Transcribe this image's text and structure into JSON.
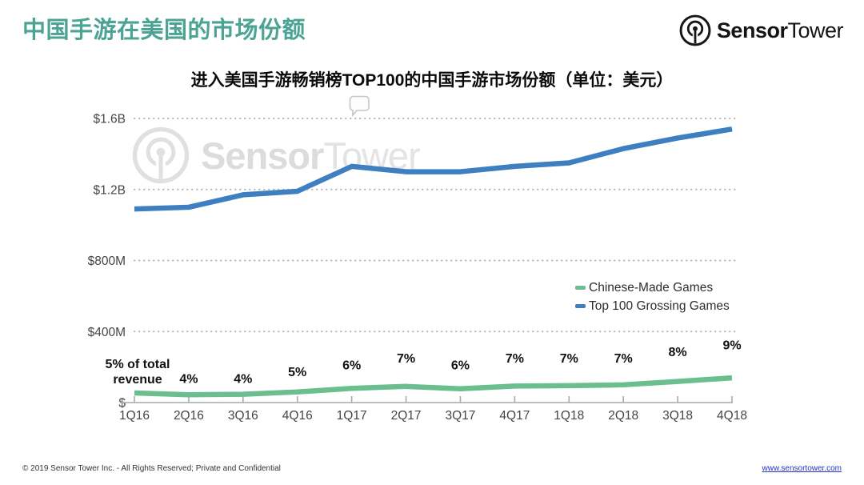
{
  "header": {
    "title": "中国手游在美国的市场份额",
    "logo_bold": "Sensor",
    "logo_light": "Tower"
  },
  "watermark": {
    "bold": "Sensor",
    "light": "Tower"
  },
  "chart_data": {
    "type": "line",
    "title": "进入美国手游畅销榜TOP100的中国手游市场份额（单位：美元）",
    "unit": "USD (billions)",
    "categories": [
      "1Q16",
      "2Q16",
      "3Q16",
      "4Q16",
      "1Q17",
      "2Q17",
      "3Q17",
      "4Q17",
      "1Q18",
      "2Q18",
      "3Q18",
      "4Q18"
    ],
    "series": [
      {
        "name": "Chinese-Made Games",
        "color": "#6bbe8e",
        "values_billion_usd": [
          0.054,
          0.044,
          0.047,
          0.06,
          0.08,
          0.091,
          0.078,
          0.093,
          0.095,
          0.1,
          0.119,
          0.139
        ]
      },
      {
        "name": "Top 100 Grossing Games",
        "color": "#3e7fc1",
        "values_billion_usd": [
          1.09,
          1.1,
          1.17,
          1.19,
          1.33,
          1.3,
          1.3,
          1.33,
          1.35,
          1.43,
          1.49,
          1.54
        ]
      }
    ],
    "percent_of_total": [
      5,
      4,
      4,
      5,
      6,
      7,
      6,
      7,
      7,
      7,
      8,
      9
    ],
    "percent_labels": [
      "5% of total revenue",
      "4%",
      "4%",
      "5%",
      "6%",
      "7%",
      "6%",
      "7%",
      "7%",
      "7%",
      "8%",
      "9%"
    ],
    "first_point_annotation_lines": [
      "5% of total",
      "revenue"
    ],
    "y_ticks": [
      {
        "label": "$1.6B",
        "value": 1.6
      },
      {
        "label": "$1.2B",
        "value": 1.2
      },
      {
        "label": "$800M",
        "value": 0.8
      },
      {
        "label": "$400M",
        "value": 0.4
      },
      {
        "label": "$",
        "value": 0
      }
    ],
    "ylim": [
      0,
      1.7
    ],
    "grid": "horizontal-dotted",
    "legend_position": "middle-right"
  },
  "footer": {
    "copyright": "© 2019 Sensor Tower Inc. - All Rights Reserved; Private and Confidential",
    "link": "www.sensortower.com"
  }
}
